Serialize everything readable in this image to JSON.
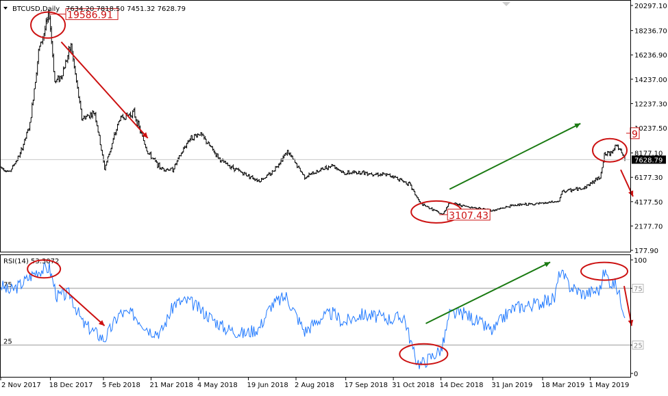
{
  "colors": {
    "price": "#000000",
    "rsi": "#1e78ff",
    "annotation_red": "#cc1111",
    "annotation_green": "#1a7a12",
    "level_line": "#b8b8b8",
    "frame": "#000000"
  },
  "chart_data": [
    {
      "type": "bar",
      "chart_style": "ohlc",
      "title": "BTCUSD,Daily",
      "ohlc_header": "7634.20 7818.50 7451.32 7628.79",
      "last_price_label": "7628.79",
      "last_price": 7628.79,
      "ylim": [
        177.9,
        20297.1
      ],
      "yticks": [
        "20297.10",
        "18236.70",
        "16236.90",
        "14237.00",
        "12237.30",
        "10237.50",
        "8177.10",
        "6177.30",
        "4177.50",
        "2177.70",
        "177.90"
      ],
      "xticks": [
        "2 Nov 2017",
        "18 Dec 2017",
        "5 Feb 2018",
        "21 Mar 2018",
        "4 May 2018",
        "19 Jun 2018",
        "2 Aug 2018",
        "17 Sep 2018",
        "31 Oct 2018",
        "14 Dec 2018",
        "31 Jan 2019",
        "18 Mar 2019",
        "1 May 2019"
      ],
      "x_range": [
        "2017-11-02",
        "2019-06-02"
      ],
      "price_path": [
        [
          "2017-11-02",
          7000
        ],
        [
          "2017-11-10",
          6600
        ],
        [
          "2017-11-20",
          8100
        ],
        [
          "2017-11-29",
          10500
        ],
        [
          "2017-12-07",
          16500
        ],
        [
          "2017-12-17",
          19586.91
        ],
        [
          "2017-12-22",
          14000
        ],
        [
          "2017-12-28",
          14500
        ],
        [
          "2018-01-06",
          17000
        ],
        [
          "2018-01-16",
          11000
        ],
        [
          "2018-01-28",
          11500
        ],
        [
          "2018-02-06",
          6900
        ],
        [
          "2018-02-20",
          11000
        ],
        [
          "2018-03-05",
          11500
        ],
        [
          "2018-03-18",
          8200
        ],
        [
          "2018-03-30",
          6900
        ],
        [
          "2018-04-10",
          6800
        ],
        [
          "2018-04-25",
          9300
        ],
        [
          "2018-05-05",
          9800
        ],
        [
          "2018-05-25",
          7500
        ],
        [
          "2018-06-12",
          6600
        ],
        [
          "2018-06-29",
          5900
        ],
        [
          "2018-07-10",
          6500
        ],
        [
          "2018-07-25",
          8300
        ],
        [
          "2018-08-10",
          6200
        ],
        [
          "2018-08-25",
          6800
        ],
        [
          "2018-09-05",
          7200
        ],
        [
          "2018-09-15",
          6500
        ],
        [
          "2018-10-01",
          6600
        ],
        [
          "2018-10-30",
          6300
        ],
        [
          "2018-11-15",
          5600
        ],
        [
          "2018-11-25",
          4000
        ],
        [
          "2018-12-07",
          3500
        ],
        [
          "2018-12-15",
          3107.43
        ],
        [
          "2018-12-22",
          4100
        ],
        [
          "2019-01-05",
          3800
        ],
        [
          "2019-01-31",
          3450
        ],
        [
          "2019-02-20",
          3900
        ],
        [
          "2019-03-15",
          4000
        ],
        [
          "2019-04-02",
          4200
        ],
        [
          "2019-04-05",
          5000
        ],
        [
          "2019-04-25",
          5300
        ],
        [
          "2019-05-10",
          6200
        ],
        [
          "2019-05-14",
          8000
        ],
        [
          "2019-05-20",
          8200
        ],
        [
          "2019-05-25",
          8900
        ],
        [
          "2019-06-02",
          7628.79
        ]
      ],
      "annotations": [
        {
          "label": "19586.91",
          "value": 19586.91,
          "date": "2017-12-17"
        },
        {
          "label": "3107.43",
          "value": 3107.43,
          "date": "2018-12-15"
        },
        {
          "label": "9",
          "date": "2019-06-02"
        }
      ]
    },
    {
      "type": "line",
      "title": "RSI(14) 53.3072",
      "series": [
        {
          "name": "RSI(14)"
        }
      ],
      "ylim": [
        0,
        100
      ],
      "levels": [
        75,
        25
      ],
      "level_labels": [
        "75",
        "25"
      ],
      "yticks": [
        "100",
        "75",
        "25",
        "0"
      ],
      "rsi_path": [
        [
          "2017-11-02",
          78
        ],
        [
          "2017-11-10",
          72
        ],
        [
          "2017-11-20",
          78
        ],
        [
          "2017-12-05",
          90
        ],
        [
          "2017-12-17",
          93
        ],
        [
          "2017-12-24",
          68
        ],
        [
          "2018-01-05",
          70
        ],
        [
          "2018-01-17",
          44
        ],
        [
          "2018-02-06",
          30
        ],
        [
          "2018-02-20",
          53
        ],
        [
          "2018-03-05",
          52
        ],
        [
          "2018-03-20",
          38
        ],
        [
          "2018-03-30",
          36
        ],
        [
          "2018-04-12",
          62
        ],
        [
          "2018-04-25",
          64
        ],
        [
          "2018-05-10",
          53
        ],
        [
          "2018-05-28",
          40
        ],
        [
          "2018-06-15",
          35
        ],
        [
          "2018-06-29",
          40
        ],
        [
          "2018-07-10",
          60
        ],
        [
          "2018-07-24",
          68
        ],
        [
          "2018-08-10",
          37
        ],
        [
          "2018-08-25",
          49
        ],
        [
          "2018-09-05",
          53
        ],
        [
          "2018-09-15",
          45
        ],
        [
          "2018-10-01",
          52
        ],
        [
          "2018-10-30",
          48
        ],
        [
          "2018-11-10",
          50
        ],
        [
          "2018-11-20",
          14
        ],
        [
          "2018-11-25",
          8
        ],
        [
          "2018-12-07",
          16
        ],
        [
          "2018-12-15",
          22
        ],
        [
          "2018-12-22",
          52
        ],
        [
          "2019-01-05",
          53
        ],
        [
          "2019-01-31",
          37
        ],
        [
          "2019-02-10",
          50
        ],
        [
          "2019-02-20",
          58
        ],
        [
          "2019-03-05",
          60
        ],
        [
          "2019-03-15",
          62
        ],
        [
          "2019-03-29",
          66
        ],
        [
          "2019-04-03",
          90
        ],
        [
          "2019-04-12",
          77
        ],
        [
          "2019-04-25",
          70
        ],
        [
          "2019-05-10",
          74
        ],
        [
          "2019-05-14",
          90
        ],
        [
          "2019-05-20",
          80
        ],
        [
          "2019-05-25",
          78
        ],
        [
          "2019-06-02",
          53.3072
        ]
      ]
    }
  ]
}
